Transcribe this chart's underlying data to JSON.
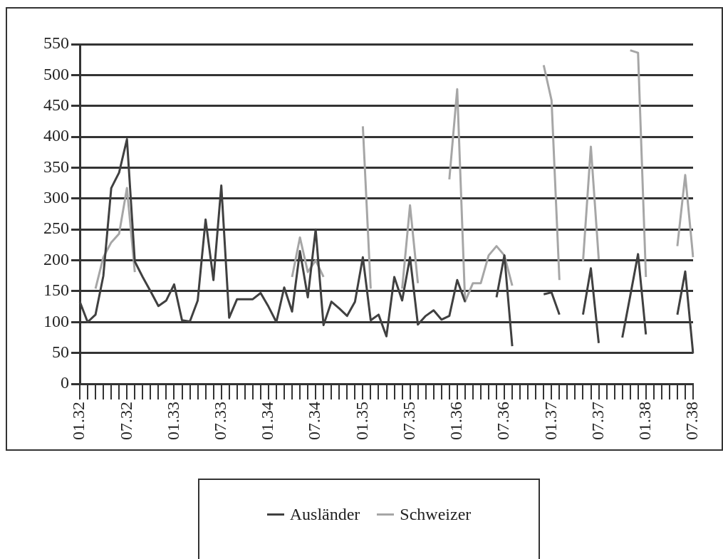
{
  "chart_data": {
    "type": "line",
    "categories": [
      "01.32",
      null,
      null,
      null,
      null,
      null,
      "07.32",
      null,
      null,
      null,
      null,
      null,
      "01.33",
      null,
      null,
      null,
      null,
      null,
      "07.33",
      null,
      null,
      null,
      null,
      null,
      "01.34",
      null,
      null,
      null,
      null,
      null,
      "07.34",
      null,
      null,
      null,
      null,
      null,
      "01.35",
      null,
      null,
      null,
      null,
      null,
      "07.35",
      null,
      null,
      null,
      null,
      null,
      "01.36",
      null,
      null,
      null,
      null,
      null,
      "07.36",
      null,
      null,
      null,
      null,
      null,
      "01.37",
      null,
      null,
      null,
      null,
      null,
      "07.37",
      null,
      null,
      null,
      null,
      null,
      "01.38",
      null,
      null,
      null,
      null,
      null,
      "07.38"
    ],
    "series": [
      {
        "name": "Ausländer",
        "color": "#404040",
        "values": [
          133,
          100,
          112,
          175,
          317,
          342,
          396,
          198,
          173,
          150,
          126,
          135,
          161,
          103,
          101,
          135,
          266,
          168,
          321,
          107,
          137,
          137,
          137,
          147,
          125,
          100,
          156,
          117,
          215,
          140,
          250,
          95,
          133,
          122,
          110,
          133,
          205,
          103,
          112,
          77,
          173,
          135,
          205,
          96,
          110,
          119,
          104,
          110,
          168,
          133,
          null,
          null,
          null,
          140,
          208,
          61,
          null,
          null,
          null,
          145,
          148,
          112,
          null,
          null,
          112,
          187,
          66,
          null,
          null,
          75,
          142,
          210,
          80,
          null,
          null,
          null,
          112,
          182,
          49
        ]
      },
      {
        "name": "Schweizer",
        "color": "#a6a6a6",
        "values": [
          null,
          null,
          154,
          205,
          229,
          243,
          317,
          181,
          null,
          null,
          null,
          null,
          null,
          null,
          null,
          null,
          null,
          null,
          null,
          null,
          null,
          null,
          null,
          null,
          null,
          null,
          null,
          173,
          237,
          181,
          200,
          173,
          null,
          null,
          null,
          null,
          417,
          154,
          null,
          null,
          null,
          154,
          289,
          163,
          null,
          null,
          null,
          331,
          477,
          133,
          163,
          163,
          208,
          223,
          208,
          159,
          null,
          null,
          null,
          516,
          459,
          168,
          null,
          null,
          198,
          384,
          202,
          null,
          null,
          null,
          540,
          536,
          173,
          null,
          null,
          null,
          223,
          338,
          205
        ]
      }
    ],
    "ylim": [
      0,
      550
    ],
    "yticks": [
      0,
      50,
      100,
      150,
      200,
      250,
      300,
      350,
      400,
      450,
      500,
      550
    ],
    "grid": "y",
    "legend": "bottom",
    "marker": "none",
    "line_style": "solid"
  }
}
